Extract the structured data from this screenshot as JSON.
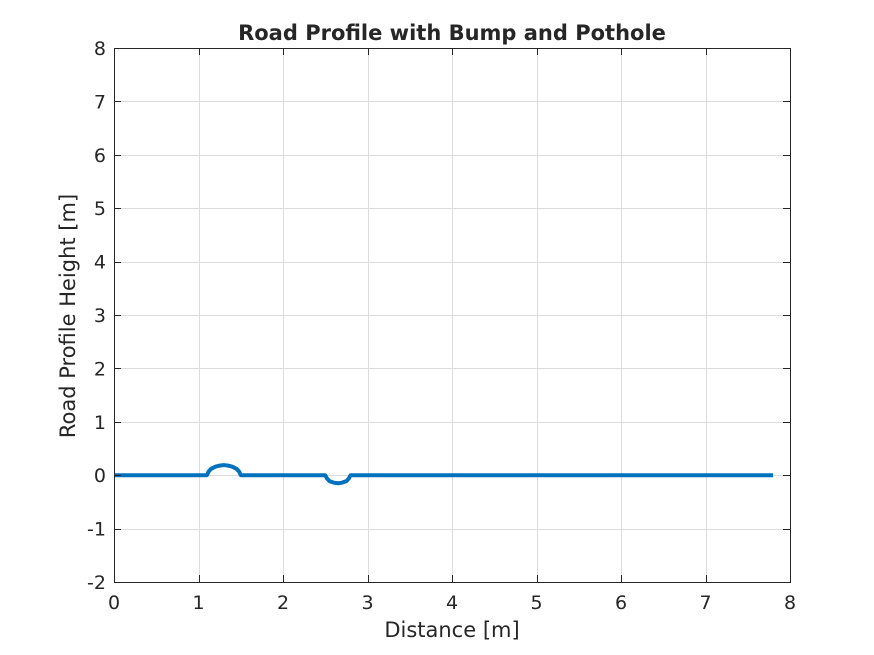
{
  "chart_data": {
    "type": "line",
    "title": "Road Profile with Bump and Pothole",
    "xlabel": "Distance [m]",
    "ylabel": "Road Profile Height [m]",
    "xlim": [
      0,
      8
    ],
    "ylim": [
      -2,
      8
    ],
    "xticks": [
      "0",
      "1",
      "2",
      "3",
      "4",
      "5",
      "6",
      "7",
      "8"
    ],
    "yticks": [
      "-2",
      "-1",
      "0",
      "1",
      "2",
      "3",
      "4",
      "5",
      "6",
      "7",
      "8"
    ],
    "grid": true,
    "legend": "none",
    "series": [
      {
        "color": "#0072BD",
        "x": [
          0,
          1.1,
          1.12,
          1.15,
          1.2,
          1.25,
          1.3,
          1.35,
          1.4,
          1.45,
          1.48,
          1.5,
          2.5,
          2.52,
          2.55,
          2.6,
          2.65,
          2.7,
          2.75,
          2.78,
          2.8,
          7.8
        ],
        "y": [
          0,
          0,
          0.07,
          0.12,
          0.16,
          0.18,
          0.19,
          0.18,
          0.16,
          0.12,
          0.07,
          0,
          0,
          -0.06,
          -0.11,
          -0.14,
          -0.15,
          -0.14,
          -0.11,
          -0.06,
          0,
          0
        ]
      }
    ]
  }
}
